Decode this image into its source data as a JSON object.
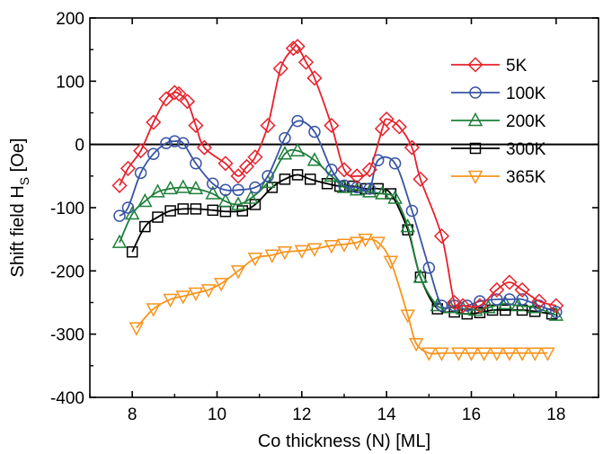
{
  "chart_data": {
    "type": "line",
    "xlabel": "Co thickness (N) [ML]",
    "ylabel_main": "Shift field H",
    "ylabel_sub": "S",
    "ylabel_unit": " [Oe]",
    "xlim": [
      7,
      19
    ],
    "ylim": [
      -400,
      200
    ],
    "xticks": [
      8,
      10,
      12,
      14,
      16,
      18
    ],
    "yticks": [
      -400,
      -300,
      -200,
      -100,
      0,
      100,
      200
    ],
    "zero_line": true,
    "grid": false,
    "legend_position": "top-right",
    "series": [
      {
        "name": "5K",
        "marker": "diamond",
        "color": "#e8212b",
        "x": [
          7.7,
          7.9,
          8.2,
          8.5,
          8.8,
          9.0,
          9.1,
          9.3,
          9.5,
          9.7,
          10.2,
          10.5,
          10.7,
          10.9,
          11.2,
          11.5,
          11.8,
          11.9,
          12.1,
          12.3,
          12.7,
          13.0,
          13.3,
          13.6,
          13.9,
          14.0,
          14.3,
          14.6,
          14.8,
          15.3,
          15.6,
          15.8,
          16.2,
          16.6,
          16.9,
          17.2,
          17.6,
          18.0
        ],
        "y": [
          -65,
          -38,
          -10,
          35,
          72,
          82,
          80,
          68,
          30,
          -5,
          -30,
          -50,
          -35,
          -20,
          30,
          120,
          152,
          155,
          130,
          105,
          30,
          -40,
          -50,
          -40,
          25,
          40,
          28,
          -5,
          -55,
          -145,
          -250,
          -255,
          -255,
          -230,
          -218,
          -230,
          -248,
          -255
        ]
      },
      {
        "name": "100K",
        "marker": "circle",
        "color": "#3854a4",
        "x": [
          7.7,
          7.9,
          8.2,
          8.5,
          8.8,
          9.0,
          9.2,
          9.5,
          9.9,
          10.2,
          10.5,
          10.9,
          11.2,
          11.6,
          11.9,
          12.3,
          12.7,
          13.0,
          13.3,
          13.6,
          13.8,
          14.2,
          14.6,
          15.0,
          15.3,
          15.6,
          15.9,
          16.2,
          16.6,
          16.9,
          17.2,
          17.6,
          18.0
        ],
        "y": [
          -113,
          -100,
          -45,
          -15,
          2,
          5,
          2,
          -30,
          -62,
          -72,
          -72,
          -68,
          -50,
          10,
          37,
          20,
          -40,
          -65,
          -68,
          -70,
          -25,
          -30,
          -105,
          -195,
          -255,
          -255,
          -255,
          -248,
          -245,
          -245,
          -245,
          -255,
          -265
        ]
      },
      {
        "name": "200K",
        "marker": "triangle-up",
        "color": "#1e7f3a",
        "x": [
          7.7,
          8.0,
          8.3,
          8.6,
          8.9,
          9.2,
          9.5,
          9.9,
          10.2,
          10.5,
          10.8,
          11.2,
          11.6,
          11.9,
          12.3,
          12.7,
          13.0,
          13.3,
          13.6,
          13.9,
          14.2,
          14.5,
          14.8,
          15.2,
          15.5,
          15.8,
          16.1,
          16.4,
          16.8,
          17.1,
          17.5,
          18.0
        ],
        "y": [
          -155,
          -110,
          -90,
          -75,
          -70,
          -68,
          -70,
          -78,
          -90,
          -95,
          -85,
          -60,
          -15,
          -10,
          -25,
          -50,
          -68,
          -72,
          -75,
          -78,
          -85,
          -130,
          -210,
          -255,
          -258,
          -260,
          -262,
          -258,
          -252,
          -255,
          -258,
          -270
        ]
      },
      {
        "name": "300K",
        "marker": "square",
        "color": "#000000",
        "x": [
          8.0,
          8.3,
          8.6,
          8.9,
          9.2,
          9.5,
          9.9,
          10.2,
          10.6,
          10.9,
          11.3,
          11.6,
          11.9,
          12.2,
          12.6,
          12.9,
          13.2,
          13.5,
          13.8,
          14.1,
          14.5,
          14.8,
          15.2,
          15.6,
          15.9,
          16.2,
          16.5,
          16.8,
          17.2,
          17.5,
          17.9
        ],
        "y": [
          -170,
          -130,
          -115,
          -105,
          -102,
          -102,
          -104,
          -106,
          -105,
          -95,
          -68,
          -55,
          -48,
          -55,
          -62,
          -66,
          -66,
          -70,
          -70,
          -78,
          -135,
          -210,
          -260,
          -265,
          -268,
          -266,
          -262,
          -262,
          -262,
          -264,
          -268
        ]
      },
      {
        "name": "365K",
        "marker": "triangle-down",
        "color": "#f7941d",
        "x": [
          8.1,
          8.5,
          8.9,
          9.2,
          9.5,
          9.8,
          10.1,
          10.5,
          10.9,
          11.3,
          11.6,
          12.0,
          12.3,
          12.7,
          13.0,
          13.3,
          13.5,
          13.8,
          14.1,
          14.5,
          14.7,
          15.0,
          15.3,
          15.7,
          16.0,
          16.3,
          16.6,
          16.9,
          17.2,
          17.5,
          17.8
        ],
        "y": [
          -290,
          -260,
          -245,
          -240,
          -235,
          -230,
          -220,
          -200,
          -180,
          -175,
          -170,
          -168,
          -165,
          -160,
          -158,
          -155,
          -150,
          -155,
          -185,
          -270,
          -315,
          -330,
          -330,
          -330,
          -330,
          -330,
          -330,
          -330,
          -330,
          -330,
          -330
        ]
      }
    ]
  }
}
